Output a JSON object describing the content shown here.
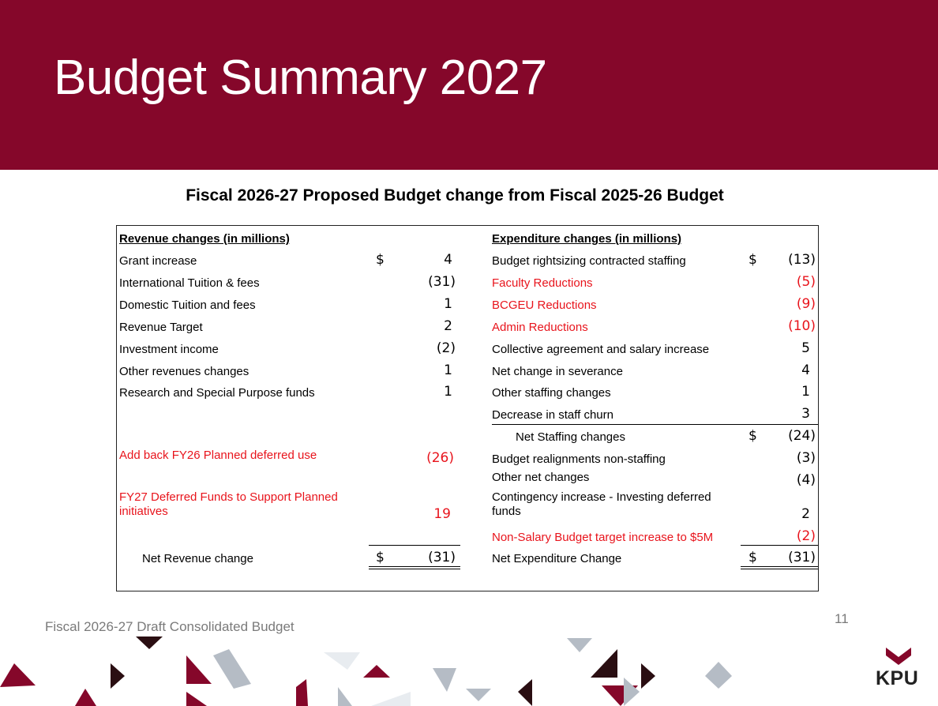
{
  "slide": {
    "title": "Budget Summary 2027",
    "page_number": "11",
    "footer": "Fiscal 2026-27 Draft Consolidated Budget",
    "logo": "KPU",
    "colors": {
      "banner": "#85072a",
      "highlight_red": "#e8141c"
    }
  },
  "table": {
    "heading": "Fiscal 2026-27 Proposed Budget change from Fiscal 2025-26 Budget",
    "revenue": {
      "header": "Revenue changes (in millions)",
      "rows": [
        {
          "label": "Grant increase",
          "currency": "$",
          "value": "4"
        },
        {
          "label": "International Tuition & fees",
          "value": "(31)"
        },
        {
          "label": "Domestic Tuition and fees",
          "value": "1"
        },
        {
          "label": "Revenue Target",
          "value": "2"
        },
        {
          "label": "Investment income",
          "value": "(2)"
        },
        {
          "label": "Other revenues changes",
          "value": "1"
        },
        {
          "label": "Research and Special Purpose funds",
          "value": "1"
        },
        {
          "label": "Add back FY26 Planned deferred use",
          "value": "(26)",
          "highlight": true
        },
        {
          "label": "FY27 Deferred Funds to Support Planned initiatives",
          "value": "19",
          "highlight": true
        }
      ],
      "total": {
        "label": "Net Revenue change",
        "currency": "$",
        "value": "(31)"
      }
    },
    "expenditure": {
      "header": "Expenditure changes (in millions)",
      "rows": [
        {
          "label": "Budget rightsizing contracted staffing",
          "currency": "$",
          "value": "(13)"
        },
        {
          "label": "Faculty Reductions",
          "value": "(5)",
          "highlight": true
        },
        {
          "label": "BCGEU Reductions",
          "value": "(9)",
          "highlight": true
        },
        {
          "label": "Admin Reductions",
          "value": "(10)",
          "highlight": true
        },
        {
          "label": "Collective agreement and salary increase",
          "value": "5"
        },
        {
          "label": "Net change in severance",
          "value": "4"
        },
        {
          "label": "Other staffing changes",
          "value": "1"
        },
        {
          "label": "Decrease in staff churn",
          "value": "3"
        },
        {
          "label": "Net Staffing changes",
          "currency": "$",
          "value": "(24)",
          "subtotal": true
        },
        {
          "label": "Budget realignments non-staffing",
          "value": "(3)"
        },
        {
          "label": "Other net changes",
          "value": "(4)"
        },
        {
          "label": "Contingency increase - Investing deferred funds",
          "value": "2"
        },
        {
          "label": "Non-Salary Budget target increase to $5M",
          "value": "(2)",
          "highlight": true
        }
      ],
      "total": {
        "label": "Net Expenditure Change",
        "currency": "$",
        "value": "(31)"
      }
    }
  }
}
